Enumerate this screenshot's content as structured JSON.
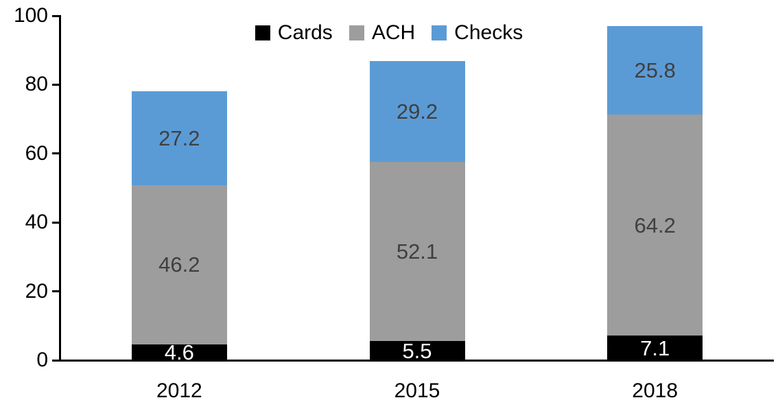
{
  "chart_data": {
    "type": "bar",
    "stacked": true,
    "title": "",
    "categories": [
      "2012",
      "2015",
      "2018"
    ],
    "series": [
      {
        "name": "Cards",
        "color": "#000000",
        "label_color": "#ffffff",
        "values": [
          4.6,
          5.5,
          7.1
        ]
      },
      {
        "name": "ACH",
        "color": "#9d9d9d",
        "label_color": "#3f3f3f",
        "values": [
          46.2,
          52.1,
          64.2
        ]
      },
      {
        "name": "Checks",
        "color": "#5b9bd5",
        "label_color": "#3f3f3f",
        "values": [
          27.2,
          29.2,
          25.8
        ]
      }
    ],
    "totals": [
      78.0,
      86.8,
      97.1
    ],
    "yticks": [
      0,
      20,
      40,
      60,
      80,
      100
    ],
    "ylim": [
      0,
      100
    ],
    "xlabel": "",
    "ylabel": "",
    "grid": false,
    "legend_position": "top-center",
    "legend_entries": [
      "Cards",
      "ACH",
      "Checks"
    ],
    "axis_color": "#000000",
    "tick_label_color": "#000000"
  }
}
